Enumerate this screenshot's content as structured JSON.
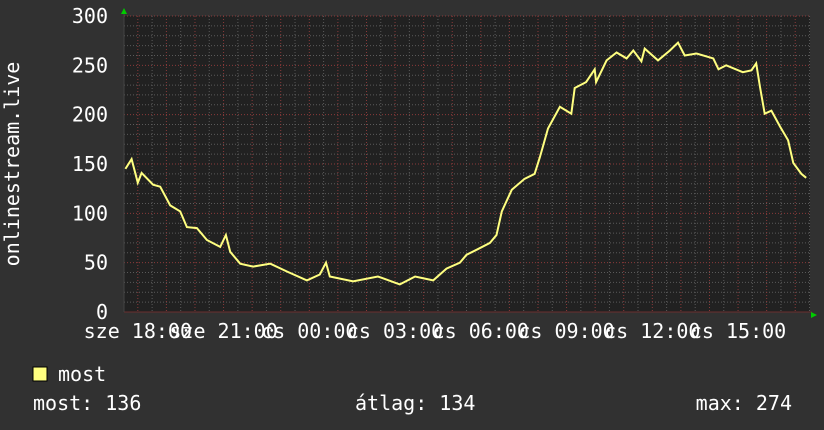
{
  "chart_data": {
    "type": "line",
    "ylabel": "onlinestream.live",
    "ylim": [
      0,
      300
    ],
    "yticks": [
      "0",
      "50",
      "100",
      "150",
      "200",
      "250",
      "300"
    ],
    "xlim": [
      "sze 17:31",
      "cs 17:31"
    ],
    "xticks": [
      {
        "at": "sze 18:00",
        "label": "sze 18:00"
      },
      {
        "at": "sze 21:00",
        "label": "sze 21:00"
      },
      {
        "at": "cs 00:00",
        "label": "cs 00:00"
      },
      {
        "at": "cs 03:00",
        "label": "cs 03:00"
      },
      {
        "at": "cs 06:00",
        "label": "cs 06:00"
      },
      {
        "at": "cs 09:00",
        "label": "cs 09:00"
      },
      {
        "at": "cs 12:00",
        "label": "cs 12:00"
      },
      {
        "at": "cs 15:00",
        "label": "cs 15:00"
      }
    ],
    "grid": true,
    "background": "#212121",
    "grid_major_color": "#8a3a3a",
    "grid_minor_color": "#5a5a5a",
    "series": [
      {
        "name": "most",
        "color": "#ffff80",
        "x": [
          "sze 17:34",
          "sze 17:47",
          "sze 18:00",
          "sze 18:08",
          "sze 18:32",
          "sze 18:47",
          "sze 19:08",
          "sze 19:29",
          "sze 19:43",
          "sze 20:04",
          "sze 20:25",
          "sze 20:53",
          "sze 21:05",
          "sze 21:14",
          "sze 21:35",
          "sze 22:02",
          "sze 22:38",
          "sze 23:13",
          "sze 23:55",
          "cs 00:22",
          "cs 00:35",
          "cs 00:43",
          "cs 01:32",
          "cs 02:24",
          "cs 03:10",
          "cs 03:42",
          "cs 04:20",
          "cs 04:48",
          "cs 05:16",
          "cs 05:30",
          "cs 05:51",
          "cs 06:19",
          "cs 06:33",
          "cs 06:44",
          "cs 07:05",
          "cs 07:32",
          "cs 07:53",
          "cs 08:04",
          "cs 08:21",
          "cs 08:46",
          "cs 09:10",
          "cs 09:17",
          "cs 09:41",
          "cs 09:59",
          "cs 10:02",
          "cs 10:24",
          "cs 10:45",
          "cs 11:06",
          "cs 11:20",
          "cs 11:37",
          "cs 11:44",
          "cs 12:12",
          "cs 12:37",
          "cs 12:54",
          "cs 13:08",
          "cs 13:33",
          "cs 14:08",
          "cs 14:19",
          "cs 14:35",
          "cs 15:10",
          "cs 15:28",
          "cs 15:38",
          "cs 15:46",
          "cs 15:56",
          "cs 16:10",
          "cs 16:28",
          "cs 16:45",
          "cs 16:56",
          "cs 17:13",
          "cs 17:23"
        ],
        "y": [
          145,
          155,
          131,
          141,
          129,
          127,
          108,
          102,
          86,
          85,
          73,
          66,
          78,
          61,
          49,
          46,
          49,
          41,
          32,
          38,
          50,
          36,
          31,
          36,
          28,
          36,
          32,
          44,
          50,
          58,
          63,
          70,
          78,
          102,
          124,
          135,
          140,
          157,
          186,
          208,
          201,
          227,
          233,
          246,
          233,
          255,
          263,
          257,
          265,
          254,
          267,
          255,
          265,
          273,
          260,
          262,
          257,
          246,
          250,
          243,
          245,
          252,
          228,
          201,
          204,
          188,
          174,
          151,
          140,
          136
        ]
      }
    ],
    "legend": {
      "label": "most",
      "color": "#ffff80",
      "placement": "bottom-left"
    },
    "stats": {
      "current": "most: 136",
      "average": "átlag: 134",
      "max": "max: 274"
    }
  }
}
